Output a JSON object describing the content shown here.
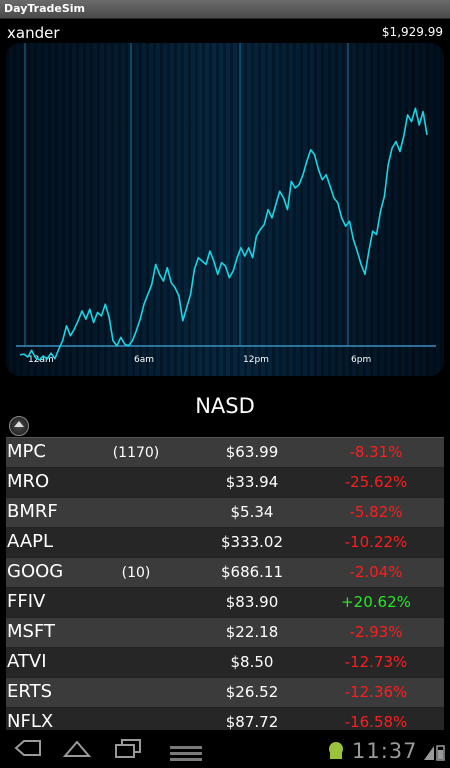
{
  "window": {
    "title": "DayTradeSim"
  },
  "header": {
    "username": "xander",
    "balance": "$1,929.99"
  },
  "chart_data": {
    "type": "line",
    "x_tick_labels": [
      "12am",
      "6am",
      "12pm",
      "6pm"
    ],
    "grid": true,
    "series": [
      {
        "values": [
          0.35,
          0.4,
          0.22,
          0.62,
          0.18,
          0.05,
          0.28,
          0.1,
          0.45,
          0.12,
          0.7,
          1.2,
          2.1,
          1.5,
          1.9,
          2.4,
          3.0,
          2.5,
          3.1,
          2.3,
          2.9,
          2.7,
          3.4,
          2.6,
          1.2,
          0.9,
          1.4,
          1.0,
          0.9,
          1.2,
          1.8,
          2.5,
          3.4,
          4.0,
          4.6,
          5.8,
          5.2,
          4.8,
          5.6,
          4.7,
          4.4,
          3.9,
          2.4,
          3.2,
          4.0,
          5.5,
          6.2,
          6.0,
          5.8,
          6.6,
          6.0,
          5.2,
          5.9,
          5.7,
          5.0,
          5.4,
          6.2,
          6.8,
          6.3,
          6.8,
          6.2,
          7.5,
          7.9,
          8.2,
          9.1,
          8.6,
          9.4,
          10.2,
          9.8,
          9.1,
          10.8,
          10.4,
          10.6,
          11.2,
          12.0,
          12.7,
          12.4,
          11.5,
          10.9,
          11.2,
          10.5,
          9.8,
          9.5,
          8.6,
          8.1,
          8.4,
          7.3,
          6.6,
          5.8,
          5.2,
          6.6,
          7.8,
          7.6,
          9.0,
          9.9,
          11.8,
          12.8,
          13.2,
          12.6,
          13.5,
          14.8,
          14.4,
          15.2,
          14.2,
          15.0,
          13.6
        ]
      }
    ]
  },
  "watchlist": {
    "title": "NASD",
    "stocks": [
      {
        "symbol": "MPC",
        "qty": "(1170)",
        "price": "$63.99",
        "change": "-8.31%"
      },
      {
        "symbol": "MRO",
        "qty": "",
        "price": "$33.94",
        "change": "-25.62%"
      },
      {
        "symbol": "BMRF",
        "qty": "",
        "price": "$5.34",
        "change": "-5.82%"
      },
      {
        "symbol": "AAPL",
        "qty": "",
        "price": "$333.02",
        "change": "-10.22%"
      },
      {
        "symbol": "GOOG",
        "qty": "(10)",
        "price": "$686.11",
        "change": "-2.04%"
      },
      {
        "symbol": "FFIV",
        "qty": "",
        "price": "$83.90",
        "change": "+20.62%"
      },
      {
        "symbol": "MSFT",
        "qty": "",
        "price": "$22.18",
        "change": "-2.93%"
      },
      {
        "symbol": "ATVI",
        "qty": "",
        "price": "$8.50",
        "change": "-12.73%"
      },
      {
        "symbol": "ERTS",
        "qty": "",
        "price": "$26.52",
        "change": "-12.36%"
      },
      {
        "symbol": "NFLX",
        "qty": "",
        "price": "$87.72",
        "change": "-16.58%"
      }
    ]
  },
  "status": {
    "time": "11:37"
  },
  "colors": {
    "line": "#19d6e4",
    "negative": "#ff1d1d",
    "positive": "#27e627"
  }
}
